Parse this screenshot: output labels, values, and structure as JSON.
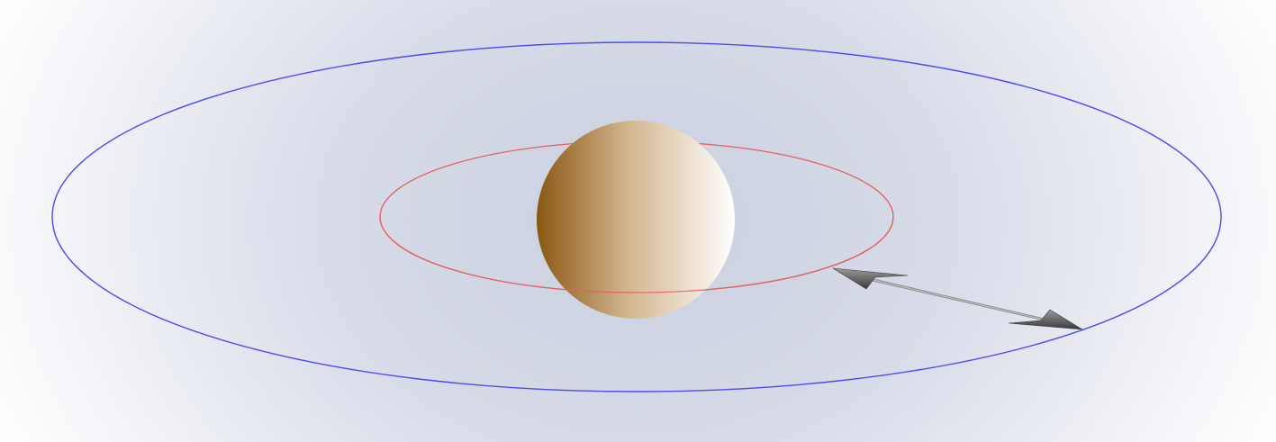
{
  "diagram": {
    "elements": {
      "planet": {
        "icon": "planet-sphere",
        "colors": {
          "dark": "#8a5712",
          "mid": "#d2b48c",
          "light": "#ffffff"
        }
      },
      "inner_orbit": {
        "icon": "ellipse-orbit",
        "color": "#e06262"
      },
      "outer_orbit": {
        "icon": "ellipse-orbit",
        "color": "#4b4bf0"
      },
      "transfer_arrow": {
        "icon": "double-headed-arrow",
        "color": "#7a7a7a"
      }
    },
    "background": {
      "center_color": "#c9cfdf",
      "edge_color": "#ffffff"
    }
  }
}
